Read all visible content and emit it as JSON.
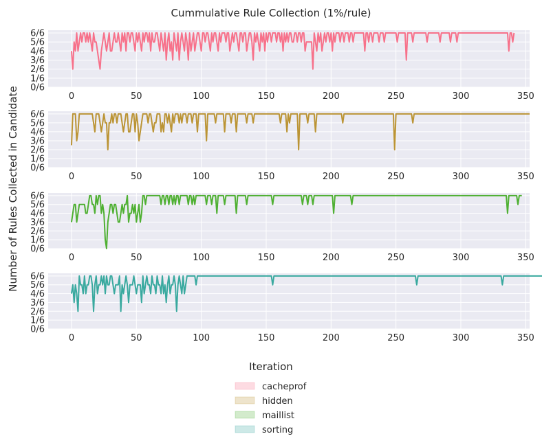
{
  "chart_data": {
    "type": "line",
    "title": "Cummulative Rule Collection (1%/rule)",
    "xlabel": "Iteration",
    "ylabel": "Number of Rules Collected in Candidate",
    "xlim": [
      -18,
      353
    ],
    "ylim": [
      0,
      6
    ],
    "x_ticks": [
      0,
      50,
      100,
      150,
      200,
      250,
      300,
      350
    ],
    "y_tick_labels": [
      "0/6",
      "1/6",
      "2/6",
      "3/6",
      "4/6",
      "5/6",
      "6/6"
    ],
    "grid": true,
    "legend_position": "bottom-center",
    "background": "#eaeaf2",
    "series": [
      {
        "name": "cacheprof",
        "color": "#f7718a",
        "values": [
          4,
          2,
          5,
          4,
          6,
          4,
          5,
          6,
          5,
          6,
          6,
          5,
          6,
          5,
          6,
          5,
          4,
          6,
          5,
          5,
          4,
          3,
          2,
          4,
          5,
          6,
          5,
          4,
          5,
          6,
          4,
          4,
          5,
          6,
          5,
          5,
          6,
          5,
          4,
          6,
          5,
          6,
          4,
          6,
          6,
          5,
          6,
          6,
          5,
          4,
          6,
          5,
          6,
          5,
          4,
          6,
          5,
          6,
          6,
          5,
          6,
          4,
          6,
          5,
          5,
          6,
          6,
          5,
          4,
          6,
          5,
          4,
          6,
          3,
          5,
          6,
          4,
          5,
          3,
          6,
          5,
          4,
          6,
          3,
          5,
          6,
          5,
          4,
          6,
          5,
          3,
          6,
          4,
          5,
          6,
          4,
          5,
          6,
          6,
          5,
          4,
          6,
          6,
          5,
          6,
          6,
          5,
          4,
          6,
          5,
          6,
          6,
          5,
          4,
          6,
          5,
          6,
          6,
          6,
          5,
          6,
          6,
          4,
          5,
          6,
          5,
          6,
          6,
          5,
          4,
          6,
          6,
          5,
          6,
          6,
          4,
          5,
          6,
          6,
          5,
          3,
          6,
          5,
          6,
          5,
          4,
          6,
          5,
          6,
          4,
          6,
          5,
          6,
          6,
          5,
          6,
          6,
          6,
          5,
          6,
          6,
          5,
          6,
          4,
          6,
          5,
          6,
          5,
          6,
          6,
          5,
          5,
          6,
          6,
          5,
          6,
          6,
          5,
          6,
          6,
          4,
          5,
          5,
          5,
          5,
          5,
          2,
          6,
          5,
          4,
          6,
          5,
          6,
          4,
          5,
          6,
          5,
          6,
          6,
          5,
          6,
          4,
          6,
          5,
          6,
          6,
          6,
          5,
          6,
          6,
          5,
          6,
          6,
          6,
          5,
          6,
          6,
          5,
          6,
          6,
          6,
          6,
          6,
          6,
          6,
          6,
          4,
          6,
          6,
          5,
          6,
          6,
          5,
          6,
          6,
          6,
          6,
          5,
          6,
          6,
          6,
          5,
          6,
          6,
          6,
          6,
          6,
          6,
          6,
          6,
          6,
          5,
          6,
          6,
          6,
          6,
          6,
          6,
          3,
          6,
          6,
          6,
          6,
          5,
          6,
          6,
          6,
          6,
          6,
          6,
          6,
          6,
          6,
          6,
          5,
          6,
          6,
          6,
          6,
          6,
          6,
          6,
          6,
          6,
          5,
          6,
          6,
          6,
          6,
          6,
          6,
          6,
          5,
          6,
          6,
          6,
          6,
          5,
          6,
          6,
          6,
          6,
          6,
          6,
          6,
          6,
          6,
          6,
          6,
          6,
          6,
          6,
          6,
          6,
          6,
          6,
          6,
          6,
          6,
          6,
          6,
          6,
          6,
          6,
          6,
          6,
          6,
          6,
          6,
          6,
          6,
          6,
          6,
          6,
          6,
          6,
          6,
          4,
          6,
          6,
          5,
          6
        ]
      },
      {
        "name": "hidden",
        "color": "#bb9435",
        "values": [
          2.5,
          6,
          6,
          6,
          3,
          4,
          6,
          6,
          6,
          6,
          6,
          6,
          6,
          6,
          6,
          6,
          6,
          5,
          4,
          6,
          6,
          6,
          5,
          4,
          5,
          6,
          5,
          5,
          2,
          5,
          5,
          6,
          5,
          6,
          6,
          5,
          6,
          6,
          6,
          5,
          4,
          5,
          6,
          6,
          4,
          4,
          5,
          6,
          6,
          4,
          6,
          5,
          3,
          4,
          5,
          6,
          6,
          6,
          6,
          5,
          6,
          6,
          5,
          4,
          5,
          5,
          6,
          6,
          6,
          4,
          5,
          4,
          6,
          6,
          5,
          6,
          5,
          4,
          6,
          5,
          6,
          6,
          6,
          5,
          6,
          5,
          6,
          6,
          6,
          5,
          6,
          6,
          6,
          5,
          6,
          6,
          6,
          4,
          6,
          6,
          6,
          6,
          6,
          6,
          3,
          6,
          6,
          6,
          6,
          6,
          6,
          5,
          6,
          6,
          6,
          6,
          6,
          6,
          4,
          6,
          6,
          6,
          6,
          5,
          6,
          6,
          6,
          4,
          6,
          6,
          6,
          6,
          6,
          6,
          6,
          5,
          6,
          6,
          6,
          6,
          5,
          6,
          6,
          6,
          6,
          6,
          6,
          6,
          6,
          6,
          6,
          6,
          6,
          6,
          6,
          6,
          6,
          6,
          6,
          6,
          6,
          5,
          6,
          6,
          6,
          6,
          4,
          6,
          5,
          6,
          6,
          6,
          6,
          6,
          6,
          2,
          6,
          6,
          6,
          6,
          6,
          6,
          5,
          6,
          6,
          6,
          6,
          6,
          4,
          6,
          6,
          6,
          6,
          6,
          6,
          6,
          6,
          6,
          6,
          6,
          6,
          6,
          6,
          6,
          6,
          6,
          6,
          6,
          6,
          5,
          6,
          6,
          6,
          6,
          6,
          6,
          6,
          6,
          6,
          6,
          6,
          6,
          6,
          6,
          6,
          6,
          6,
          6,
          6,
          6,
          6,
          6,
          6,
          6,
          6,
          6,
          6,
          6,
          6,
          6,
          6,
          6,
          6,
          6,
          6,
          6,
          6,
          6,
          6,
          2,
          6,
          6,
          6,
          6,
          6,
          6,
          6,
          6,
          6,
          6,
          6,
          6,
          6,
          5,
          6,
          6,
          6,
          6,
          6,
          6,
          6,
          6,
          6,
          6,
          6,
          6,
          6,
          6,
          6,
          6,
          6,
          6,
          6,
          6,
          6,
          6,
          6,
          6,
          6,
          6,
          6,
          6,
          6,
          6,
          6,
          6,
          6,
          6,
          6,
          6,
          6,
          6,
          6,
          6,
          6,
          6,
          6,
          6,
          6,
          6,
          6,
          6,
          6,
          6,
          6,
          6,
          6,
          6,
          6,
          6,
          6,
          6,
          6,
          6,
          6,
          6,
          6,
          6,
          6,
          6,
          6,
          6,
          6,
          6,
          6,
          6,
          6,
          6,
          6,
          6,
          6,
          6,
          6,
          6,
          6,
          6,
          6,
          6,
          6,
          6,
          6,
          6,
          6,
          6
        ]
      },
      {
        "name": "maillist",
        "color": "#4fb032",
        "values": [
          3,
          4,
          5,
          5,
          3,
          4,
          5,
          5,
          5,
          5,
          5,
          4,
          4,
          5,
          6,
          6,
          5,
          5,
          4,
          6,
          5,
          6,
          6,
          4,
          5,
          4,
          1,
          0,
          3,
          4,
          5,
          5,
          4,
          5,
          5,
          4,
          3,
          3,
          4,
          5,
          4,
          5,
          5,
          6,
          3,
          4,
          4,
          5,
          4,
          5,
          3,
          4,
          5,
          3,
          4,
          6,
          6,
          5,
          6,
          6,
          6,
          6,
          6,
          6,
          6,
          6,
          6,
          6,
          6,
          5,
          6,
          6,
          5,
          6,
          6,
          5,
          6,
          6,
          5,
          6,
          5,
          6,
          6,
          5,
          6,
          6,
          6,
          6,
          6,
          6,
          5,
          6,
          6,
          5,
          6,
          5,
          6,
          6,
          6,
          6,
          6,
          6,
          6,
          6,
          5,
          6,
          6,
          6,
          5,
          6,
          6,
          6,
          4,
          6,
          6,
          6,
          6,
          6,
          5,
          6,
          6,
          6,
          6,
          6,
          6,
          6,
          6,
          4,
          6,
          6,
          6,
          6,
          6,
          6,
          6,
          5,
          6,
          6,
          6,
          6,
          6,
          6,
          6,
          6,
          6,
          6,
          6,
          6,
          6,
          6,
          6,
          6,
          6,
          6,
          6,
          5,
          6,
          6,
          6,
          6,
          6,
          6,
          6,
          6,
          6,
          6,
          6,
          6,
          6,
          6,
          6,
          6,
          6,
          6,
          6,
          6,
          6,
          6,
          5,
          6,
          6,
          6,
          5,
          6,
          6,
          6,
          5,
          6,
          6,
          6,
          6,
          6,
          6,
          6,
          6,
          6,
          6,
          6,
          6,
          6,
          6,
          6,
          4,
          6,
          6,
          6,
          6,
          6,
          6,
          6,
          6,
          6,
          6,
          6,
          6,
          6,
          5,
          6,
          6,
          6,
          6,
          6,
          6,
          6,
          6,
          6,
          6,
          6,
          6,
          6,
          6,
          6,
          6,
          6,
          6,
          6,
          6,
          6,
          6,
          6,
          6,
          6,
          6,
          6,
          6,
          6,
          6,
          6,
          6,
          6,
          6,
          6,
          6,
          6,
          6,
          6,
          6,
          6,
          6,
          6,
          6,
          6,
          6,
          6,
          6,
          6,
          6,
          6,
          6,
          6,
          6,
          6,
          6,
          6,
          6,
          6,
          6,
          6,
          6,
          6,
          6,
          6,
          6,
          6,
          6,
          6,
          6,
          6,
          6,
          6,
          6,
          6,
          6,
          6,
          6,
          6,
          6,
          6,
          6,
          6,
          6,
          6,
          6,
          6,
          6,
          6,
          6,
          6,
          6,
          6,
          6,
          6,
          6,
          6,
          6,
          6,
          6,
          6,
          6,
          6,
          6,
          6,
          6,
          6,
          6,
          6,
          6,
          6,
          6,
          6,
          6,
          6,
          6,
          6,
          6,
          6,
          4,
          6,
          6,
          6,
          6,
          6,
          6,
          6,
          5,
          6,
          6,
          6
        ]
      },
      {
        "name": "sorting",
        "color": "#39a99f",
        "values": [
          4,
          5,
          3,
          5,
          4,
          2,
          6,
          5,
          5,
          4,
          6,
          4,
          5,
          5,
          6,
          6,
          5,
          2,
          5,
          6,
          4,
          5,
          5,
          6,
          5,
          6,
          4,
          6,
          5,
          5,
          6,
          6,
          5,
          4,
          5,
          5,
          5,
          6,
          2,
          5,
          4,
          5,
          6,
          5,
          3,
          5,
          5,
          5,
          6,
          5,
          4,
          5,
          5,
          5,
          3,
          6,
          4,
          5,
          6,
          5,
          5,
          4,
          6,
          5,
          5,
          4,
          6,
          5,
          5,
          4,
          6,
          4,
          5,
          3,
          5,
          6,
          4,
          5,
          5,
          6,
          5,
          2,
          5,
          6,
          5,
          4,
          6,
          4,
          5,
          6,
          6,
          6,
          6,
          6,
          6,
          6,
          5,
          6,
          6,
          6,
          6,
          6,
          6,
          6,
          6,
          6,
          6,
          6,
          6,
          6,
          6,
          6,
          6,
          6,
          6,
          6,
          6,
          6,
          6,
          6,
          6,
          6,
          6,
          6,
          6,
          6,
          6,
          6,
          6,
          6,
          6,
          6,
          6,
          6,
          6,
          6,
          6,
          6,
          6,
          6,
          6,
          6,
          6,
          6,
          6,
          6,
          6,
          6,
          6,
          6,
          6,
          6,
          6,
          6,
          6,
          5,
          6,
          6,
          6,
          6,
          6,
          6,
          6,
          6,
          6,
          6,
          6,
          6,
          6,
          6,
          6,
          6,
          6,
          6,
          6,
          6,
          6,
          6,
          6,
          6,
          6,
          6,
          6,
          6,
          6,
          6,
          6,
          6,
          6,
          6,
          6,
          6,
          6,
          6,
          6,
          6,
          6,
          6,
          6,
          6,
          6,
          6,
          6,
          6,
          6,
          6,
          6,
          6,
          6,
          6,
          6,
          6,
          6,
          6,
          6,
          6,
          6,
          6,
          6,
          6,
          6,
          6,
          6,
          6,
          6,
          6,
          6,
          6,
          6,
          6,
          6,
          6,
          6,
          6,
          6,
          6,
          6,
          6,
          6,
          6,
          6,
          6,
          6,
          6,
          6,
          6,
          6,
          6,
          6,
          6,
          6,
          6,
          6,
          6,
          6,
          6,
          6,
          6,
          6,
          6,
          6,
          6,
          6,
          6,
          6,
          6,
          5,
          6,
          6,
          6,
          6,
          6,
          6,
          6,
          6,
          6,
          6,
          6,
          6,
          6,
          6,
          6,
          6,
          6,
          6,
          6,
          6,
          6,
          6,
          6,
          6,
          6,
          6,
          6,
          6,
          6,
          6,
          6,
          6,
          6,
          6,
          6,
          6,
          6,
          6,
          6,
          6,
          6,
          6,
          6,
          6,
          6,
          6,
          6,
          6,
          6,
          6,
          6,
          6,
          6,
          6,
          6,
          6,
          6,
          6,
          6,
          6,
          6,
          6,
          6,
          6,
          6,
          5,
          6,
          6,
          6,
          6,
          6,
          6,
          6,
          6,
          6,
          6,
          6,
          6,
          6,
          6,
          6,
          6,
          6,
          6,
          6,
          6,
          6,
          6,
          6,
          6,
          6,
          6,
          6,
          6,
          6,
          6,
          6,
          6,
          6,
          6,
          6,
          6,
          6,
          6,
          6,
          6,
          6,
          6,
          6,
          6,
          6,
          6,
          6,
          6,
          6,
          6,
          6,
          6,
          6,
          6,
          6,
          6,
          6,
          6,
          6
        ]
      }
    ]
  }
}
